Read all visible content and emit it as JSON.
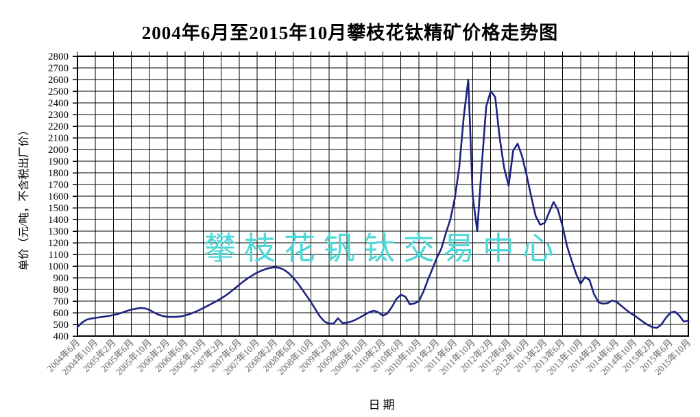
{
  "chart_data": {
    "type": "line",
    "title": "2004年6月至2015年10月攀枝花钛精矿价格走势图",
    "xlabel": "日期",
    "ylabel": "单价（元/吨，不含税出厂价）",
    "ylim": [
      400,
      2800
    ],
    "ytick_step": 100,
    "grid": true,
    "legend_position": "none",
    "x_tick_interval_months": 4,
    "x_tick_labels": [
      "2004年6月",
      "2004年10月",
      "2005年2月",
      "2005年6月",
      "2005年10月",
      "2006年2月",
      "2006年6月",
      "2006年10月",
      "2007年2月",
      "2007年6月",
      "2007年10月",
      "2008年2月",
      "2008年6月",
      "2008年10月",
      "2009年2月",
      "2009年6月",
      "2009年10月",
      "2010年2月",
      "2010年6月",
      "2010年10月",
      "2011年2月",
      "2011年6月",
      "2011年10月",
      "2012年2月",
      "2012年6月",
      "2012年10月",
      "2013年2月",
      "2013年6月",
      "2013年10月",
      "2014年2月",
      "2014年6月",
      "2014年10月",
      "2015年2月",
      "2015年6月",
      "2015年10月"
    ],
    "series": [
      {
        "start_month": "2004-06",
        "end_month": "2015-10",
        "values": [
          478,
          515,
          540,
          550,
          556,
          562,
          567,
          573,
          580,
          590,
          602,
          615,
          627,
          635,
          640,
          638,
          625,
          603,
          584,
          572,
          566,
          564,
          565,
          569,
          577,
          589,
          604,
          621,
          640,
          660,
          680,
          701,
          723,
          748,
          777,
          808,
          840,
          870,
          898,
          922,
          944,
          962,
          976,
          986,
          990,
          985,
          968,
          940,
          902,
          856,
          802,
          746,
          690,
          628,
          566,
          525,
          507,
          505,
          553,
          512,
          515,
          525,
          542,
          562,
          585,
          605,
          618,
          603,
          575,
          594,
          650,
          718,
          755,
          737,
          672,
          680,
          698,
          780,
          880,
          975,
          1070,
          1150,
          1280,
          1400,
          1580,
          1850,
          2280,
          2600,
          1600,
          1300,
          1860,
          2370,
          2500,
          2450,
          2100,
          1840,
          1690,
          1990,
          2050,
          1940,
          1780,
          1600,
          1430,
          1355,
          1370,
          1460,
          1550,
          1480,
          1340,
          1170,
          1050,
          935,
          848,
          905,
          880,
          760,
          690,
          678,
          682,
          705,
          695,
          662,
          630,
          600,
          576,
          548,
          520,
          496,
          476,
          470,
          500,
          555,
          600,
          610,
          575,
          524,
          532
        ]
      }
    ]
  },
  "watermark": {
    "text": "攀枝花钒钛交易中心",
    "color": "#4ed8d8"
  },
  "colors": {
    "line": "#1c2382",
    "grid": "#000000",
    "background": "#ffffff",
    "x_tick_text": "#707070"
  }
}
